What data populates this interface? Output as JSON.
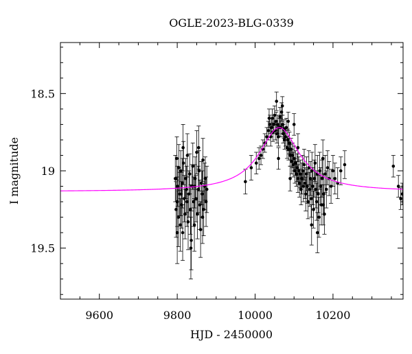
{
  "chart_data": {
    "type": "scatter",
    "title": "OGLE-2023-BLG-0339",
    "xlabel": "HJD - 2450000",
    "ylabel": "I magnitude",
    "xlim": [
      9500,
      10380
    ],
    "ylim": [
      19.83,
      18.17
    ],
    "y_inverted": true,
    "xticks": [
      "9600",
      "9800",
      "10000",
      "10200"
    ],
    "xtick_values": [
      9600,
      9800,
      10000,
      10200
    ],
    "yticks": [
      "18.5",
      "19",
      "19.5"
    ],
    "ytick_values": [
      18.5,
      19.0,
      19.5
    ],
    "grid": false,
    "colors": {
      "points": "#000000",
      "model": "#ff00ff"
    },
    "series": [
      {
        "type": "scatter-errorbars",
        "points": [
          [
            9795,
            19.05,
            0.15
          ],
          [
            9797,
            19.25,
            0.18
          ],
          [
            9799,
            18.92,
            0.14
          ],
          [
            9800,
            19.2,
            0.16
          ],
          [
            9801,
            19.1,
            0.13
          ],
          [
            9803,
            19.3,
            0.19
          ],
          [
            9804,
            18.98,
            0.15
          ],
          [
            9806,
            19.15,
            0.14
          ],
          [
            9808,
            19.35,
            0.17
          ],
          [
            9809,
            19.0,
            0.13
          ],
          [
            9811,
            19.22,
            0.15
          ],
          [
            9813,
            19.08,
            0.16
          ],
          [
            9814,
            19.4,
            0.18
          ],
          [
            9816,
            18.95,
            0.14
          ],
          [
            9818,
            19.18,
            0.15
          ],
          [
            9820,
            19.28,
            0.16
          ],
          [
            9822,
            19.05,
            0.13
          ],
          [
            9824,
            19.12,
            0.15
          ],
          [
            9826,
            18.9,
            0.14
          ],
          [
            9828,
            19.33,
            0.18
          ],
          [
            9830,
            19.15,
            0.15
          ],
          [
            9832,
            19.02,
            0.13
          ],
          [
            9834,
            19.25,
            0.16
          ],
          [
            9836,
            19.45,
            0.19
          ],
          [
            9838,
            19.1,
            0.14
          ],
          [
            9840,
            18.97,
            0.15
          ],
          [
            9842,
            19.2,
            0.16
          ],
          [
            9844,
            19.35,
            0.17
          ],
          [
            9846,
            19.05,
            0.14
          ],
          [
            9848,
            19.18,
            0.15
          ],
          [
            9850,
            18.88,
            0.14
          ],
          [
            9852,
            19.28,
            0.16
          ],
          [
            9854,
            19.12,
            0.15
          ],
          [
            9856,
            19.0,
            0.13
          ],
          [
            9858,
            19.22,
            0.16
          ],
          [
            9860,
            19.38,
            0.18
          ],
          [
            9862,
            19.08,
            0.14
          ],
          [
            9864,
            19.15,
            0.15
          ],
          [
            9866,
            18.93,
            0.14
          ],
          [
            9868,
            19.25,
            0.17
          ],
          [
            9870,
            19.1,
            0.15
          ],
          [
            9872,
            19.05,
            0.14
          ],
          [
            9874,
            19.2,
            0.16
          ],
          [
            9876,
            19.12,
            0.15
          ],
          [
            9800,
            19.4,
            0.2
          ],
          [
            9815,
            18.85,
            0.15
          ],
          [
            9835,
            19.5,
            0.2
          ],
          [
            9855,
            18.85,
            0.14
          ],
          [
            9845,
            19.1,
            0.14
          ],
          [
            9825,
            19.2,
            0.16
          ],
          [
            9865,
            19.3,
            0.17
          ],
          [
            9810,
            19.15,
            0.14
          ],
          [
            9975,
            19.07,
            0.08
          ],
          [
            9990,
            18.98,
            0.08
          ],
          [
            10003,
            18.95,
            0.07
          ],
          [
            10010,
            18.92,
            0.07
          ],
          [
            10015,
            18.9,
            0.06
          ],
          [
            10020,
            18.86,
            0.06
          ],
          [
            10025,
            18.82,
            0.06
          ],
          [
            10030,
            18.78,
            0.06
          ],
          [
            10034,
            18.74,
            0.06
          ],
          [
            10036,
            18.66,
            0.06
          ],
          [
            10038,
            18.7,
            0.06
          ],
          [
            10040,
            18.78,
            0.06
          ],
          [
            10042,
            18.72,
            0.06
          ],
          [
            10044,
            18.66,
            0.06
          ],
          [
            10046,
            18.75,
            0.06
          ],
          [
            10048,
            18.7,
            0.06
          ],
          [
            10050,
            18.64,
            0.06
          ],
          [
            10052,
            18.74,
            0.06
          ],
          [
            10054,
            18.68,
            0.06
          ],
          [
            10056,
            18.76,
            0.06
          ],
          [
            10058,
            18.7,
            0.06
          ],
          [
            10060,
            18.78,
            0.06
          ],
          [
            10062,
            18.72,
            0.06
          ],
          [
            10064,
            18.65,
            0.06
          ],
          [
            10066,
            18.72,
            0.06
          ],
          [
            10068,
            18.62,
            0.06
          ],
          [
            10070,
            18.7,
            0.06
          ],
          [
            10072,
            18.76,
            0.06
          ],
          [
            10074,
            18.73,
            0.06
          ],
          [
            10076,
            18.8,
            0.06
          ],
          [
            10078,
            18.78,
            0.06
          ],
          [
            10080,
            18.72,
            0.06
          ],
          [
            10082,
            18.85,
            0.07
          ],
          [
            10084,
            18.8,
            0.07
          ],
          [
            10086,
            18.86,
            0.07
          ],
          [
            10088,
            18.82,
            0.07
          ],
          [
            10090,
            18.9,
            0.07
          ],
          [
            10092,
            18.86,
            0.07
          ],
          [
            10094,
            18.94,
            0.08
          ],
          [
            10096,
            18.9,
            0.08
          ],
          [
            10098,
            18.96,
            0.08
          ],
          [
            10100,
            18.92,
            0.08
          ],
          [
            10102,
            19.0,
            0.08
          ],
          [
            10104,
            18.95,
            0.08
          ],
          [
            10106,
            19.02,
            0.08
          ],
          [
            10108,
            18.98,
            0.09
          ],
          [
            10110,
            19.05,
            0.09
          ],
          [
            10112,
            19.0,
            0.09
          ],
          [
            10114,
            19.08,
            0.09
          ],
          [
            10116,
            19.02,
            0.09
          ],
          [
            10118,
            19.12,
            0.1
          ],
          [
            10120,
            19.05,
            0.1
          ],
          [
            10122,
            19.0,
            0.1
          ],
          [
            10124,
            19.1,
            0.1
          ],
          [
            10126,
            18.96,
            0.1
          ],
          [
            10128,
            19.08,
            0.1
          ],
          [
            10130,
            19.15,
            0.11
          ],
          [
            10132,
            19.02,
            0.11
          ],
          [
            10134,
            19.1,
            0.11
          ],
          [
            10136,
            19.2,
            0.11
          ],
          [
            10138,
            18.98,
            0.11
          ],
          [
            10140,
            19.12,
            0.11
          ],
          [
            10142,
            19.05,
            0.11
          ],
          [
            10144,
            19.18,
            0.12
          ],
          [
            10146,
            19.0,
            0.12
          ],
          [
            10148,
            19.1,
            0.12
          ],
          [
            10150,
            19.25,
            0.12
          ],
          [
            10152,
            19.05,
            0.12
          ],
          [
            10154,
            18.95,
            0.12
          ],
          [
            10156,
            19.12,
            0.12
          ],
          [
            10158,
            19.2,
            0.12
          ],
          [
            10160,
            19.02,
            0.12
          ],
          [
            10162,
            19.15,
            0.12
          ],
          [
            10164,
            19.3,
            0.13
          ],
          [
            10166,
            19.0,
            0.12
          ],
          [
            10168,
            19.1,
            0.12
          ],
          [
            10170,
            19.22,
            0.13
          ],
          [
            10172,
            19.05,
            0.12
          ],
          [
            10174,
            18.92,
            0.12
          ],
          [
            10176,
            19.15,
            0.13
          ],
          [
            10178,
            19.28,
            0.13
          ],
          [
            10180,
            19.02,
            0.12
          ],
          [
            10183,
            19.12,
            0.12
          ],
          [
            10186,
            18.98,
            0.11
          ],
          [
            10190,
            19.05,
            0.11
          ],
          [
            10195,
            19.1,
            0.11
          ],
          [
            10200,
            19.0,
            0.1
          ],
          [
            10205,
            19.05,
            0.1
          ],
          [
            10212,
            19.08,
            0.1
          ],
          [
            10220,
            19.0,
            0.09
          ],
          [
            10230,
            18.96,
            0.09
          ],
          [
            10055,
            18.55,
            0.06
          ],
          [
            10070,
            18.58,
            0.06
          ],
          [
            10085,
            18.68,
            0.06
          ],
          [
            10100,
            18.7,
            0.07
          ],
          [
            10060,
            18.92,
            0.07
          ],
          [
            10090,
            19.05,
            0.08
          ],
          [
            10110,
            18.85,
            0.09
          ],
          [
            10145,
            19.35,
            0.13
          ],
          [
            10160,
            19.4,
            0.13
          ],
          [
            10175,
            19.22,
            0.13
          ],
          [
            10355,
            18.97,
            0.07
          ],
          [
            10368,
            19.1,
            0.07
          ],
          [
            10374,
            19.18,
            0.07
          ],
          [
            10378,
            19.15,
            0.07
          ]
        ]
      },
      {
        "type": "model-curve",
        "baseline": 19.135,
        "peak_time": 10062,
        "peak_mag": 18.72,
        "timescale": 85
      }
    ]
  }
}
